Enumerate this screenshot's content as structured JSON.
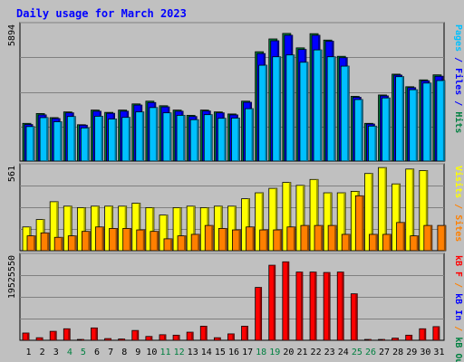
{
  "chart_data": {
    "type": "bar",
    "title": "Daily usage for March 2023",
    "categories": [
      "1",
      "2",
      "3",
      "4",
      "5",
      "6",
      "7",
      "8",
      "9",
      "10",
      "11",
      "12",
      "13",
      "14",
      "15",
      "16",
      "17",
      "18",
      "19",
      "20",
      "21",
      "22",
      "23",
      "24",
      "25",
      "26",
      "27",
      "28",
      "29",
      "30",
      "31"
    ],
    "weekend_days": [
      "4",
      "5",
      "11",
      "12",
      "18",
      "19",
      "25",
      "26"
    ],
    "panels": [
      {
        "id": "hits-files-pages",
        "ymax_label": "5894",
        "ymax": 5894,
        "right_labels": [
          {
            "text": "Pages",
            "color": "#00c0ff"
          },
          {
            "text": " / ",
            "color": "#0000ff"
          },
          {
            "text": "Files",
            "color": "#0000ff"
          },
          {
            "text": " / ",
            "color": "#0000ff"
          },
          {
            "text": "Hits",
            "color": "#008040"
          }
        ],
        "series": [
          {
            "name": "Hits",
            "color": "#008040",
            "values": [
              1650,
              2080,
              1900,
              2150,
              1590,
              2230,
              2130,
              2230,
              2500,
              2620,
              2420,
              2230,
              2000,
              2230,
              2150,
              2060,
              2620,
              4780,
              5340,
              5580,
              4950,
              5570,
              5290,
              4580,
              2830,
              1650,
              2890,
              3800,
              3250,
              3550,
              3770
            ]
          },
          {
            "name": "Files",
            "color": "#0000ff",
            "values": [
              1600,
              2020,
              1860,
              2110,
              1570,
              2180,
              2090,
              2180,
              2450,
              2560,
              2370,
              2180,
              1950,
              2190,
              2110,
              2020,
              2570,
              4700,
              5260,
              5500,
              4880,
              5500,
              5240,
              4520,
              2790,
              1620,
              2850,
              3760,
              3210,
              3510,
              3710
            ]
          },
          {
            "name": "Pages",
            "color": "#00c0ff",
            "values": [
              1510,
              1900,
              1720,
              1950,
              1450,
              1960,
              1840,
              1910,
              2150,
              2340,
              2110,
              2000,
              1810,
              2030,
              1870,
              1880,
              2290,
              4190,
              4560,
              4640,
              4320,
              4860,
              4560,
              4150,
              2690,
              1530,
              2760,
              3690,
              3120,
              3410,
              3520
            ]
          }
        ]
      },
      {
        "id": "visits-sites",
        "ymax_label": "561",
        "ymax": 561,
        "right_labels": [
          {
            "text": "Visits",
            "color": "#ffff00"
          },
          {
            "text": " / ",
            "color": "#ff8000"
          },
          {
            "text": "Sites",
            "color": "#ff8000"
          }
        ],
        "series": [
          {
            "name": "Visits",
            "color": "#ffff00",
            "values": [
              160,
              210,
              330,
              300,
              290,
              300,
              300,
              300,
              320,
              290,
              240,
              290,
              300,
              290,
              300,
              300,
              350,
              390,
              420,
              460,
              440,
              480,
              390,
              390,
              400,
              520,
              560,
              450,
              550,
              540,
              0
            ]
          },
          {
            "name": "Sites",
            "color": "#ff8000",
            "values": [
              100,
              120,
              90,
              100,
              130,
              160,
              150,
              150,
              140,
              130,
              80,
              100,
              110,
              170,
              150,
              140,
              160,
              140,
              140,
              160,
              170,
              170,
              170,
              110,
              370,
              110,
              110,
              190,
              100,
              170,
              170
            ]
          }
        ]
      },
      {
        "id": "kbf",
        "ymax_label": "19525550",
        "ymax": 19525550,
        "right_labels": [
          {
            "text": "kB F",
            "color": "#ff0000"
          },
          {
            "text": " / ",
            "color": "#ff8000"
          },
          {
            "text": "kB In",
            "color": "#0000ff"
          },
          {
            "text": " / ",
            "color": "#ff8000"
          },
          {
            "text": "kB Out",
            "color": "#008040"
          }
        ],
        "series": [
          {
            "name": "kB F",
            "color": "#ff0000",
            "values": [
              1700000,
              600000,
              2100000,
              2700000,
              200000,
              2900000,
              400000,
              300000,
              2300000,
              900000,
              1300000,
              1200000,
              1900000,
              3300000,
              600000,
              1500000,
              3300000,
              12400000,
              17600000,
              18400000,
              16000000,
              16000000,
              15900000,
              16000000,
              10900000,
              200000,
              200000,
              500000,
              1200000,
              2700000,
              3200000
            ]
          }
        ]
      }
    ]
  },
  "colors": {
    "background": "#c0c0c0",
    "plot_bg": "#c0c0c0",
    "title": "#0000ff",
    "axis_text": "#000000",
    "weekend_text": "#008040",
    "grid": "#000000"
  }
}
